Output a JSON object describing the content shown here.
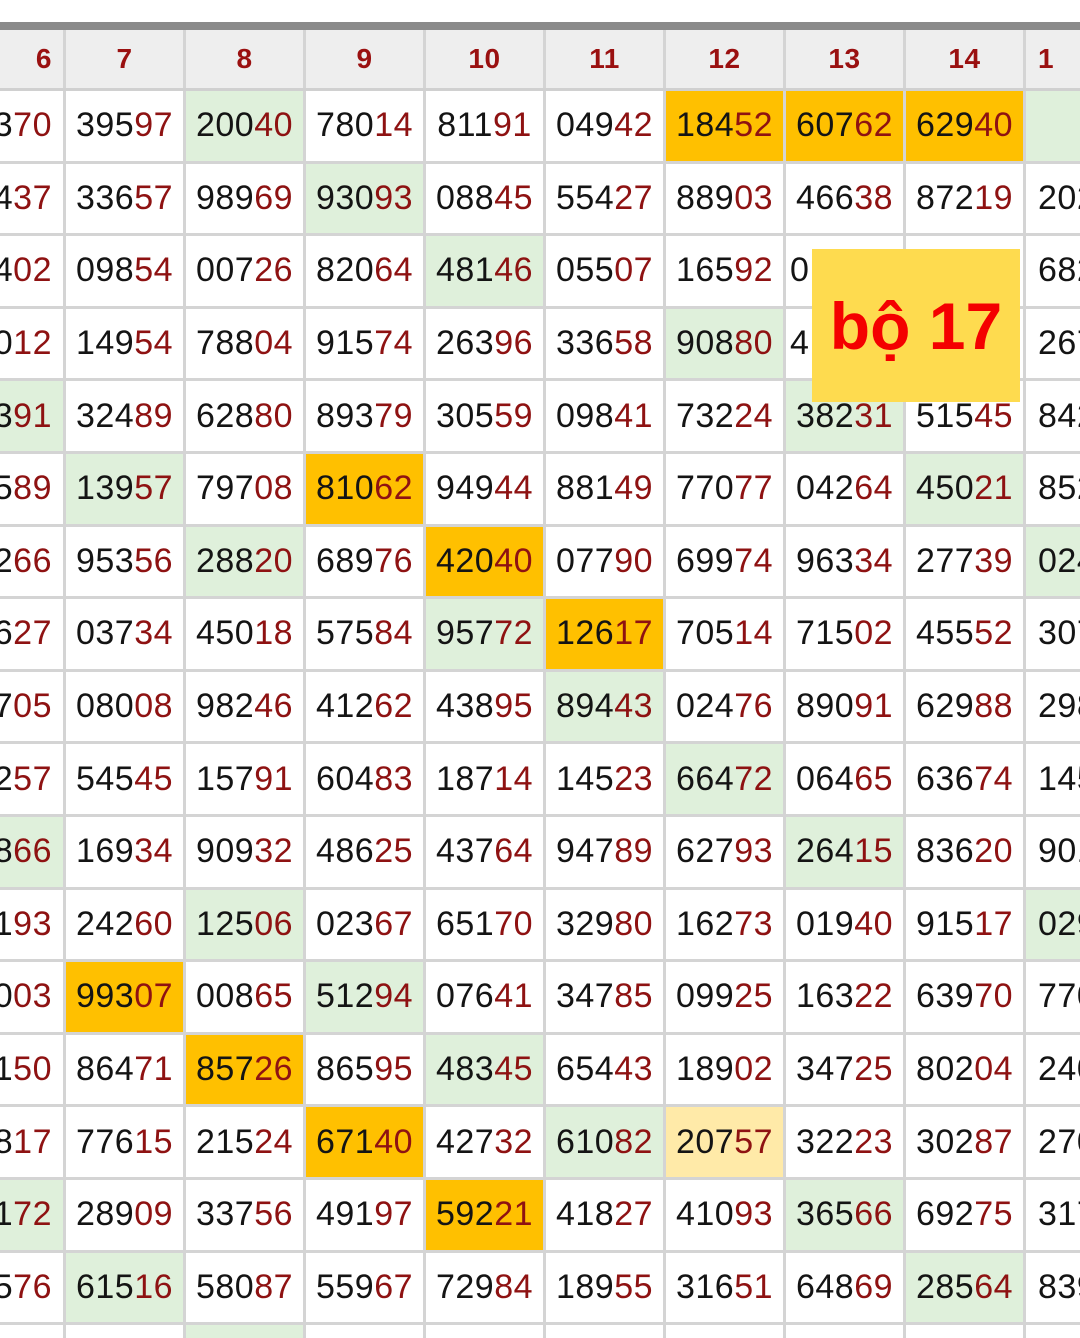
{
  "header": [
    "6",
    "7",
    "8",
    "9",
    "10",
    "11",
    "12",
    "13",
    "14",
    "1"
  ],
  "rows": [
    {
      "cells": [
        "370",
        "39597",
        "20040",
        "78014",
        "81191",
        "04942",
        "18452",
        "60762",
        "62940",
        ""
      ],
      "hl": [
        "",
        "",
        "g",
        "",
        "",
        "",
        "o",
        "o",
        "o",
        "g"
      ]
    },
    {
      "cells": [
        "437",
        "33657",
        "98969",
        "93093",
        "08845",
        "55427",
        "88903",
        "46638",
        "87219",
        "202"
      ],
      "hl": [
        "",
        "",
        "",
        "g",
        "",
        "",
        "",
        "",
        "",
        ""
      ]
    },
    {
      "cells": [
        "402",
        "09854",
        "00726",
        "82064",
        "48146",
        "05507",
        "16592",
        "0",
        "",
        "682"
      ],
      "hl": [
        "",
        "",
        "",
        "",
        "g",
        "",
        "",
        "",
        "",
        ""
      ]
    },
    {
      "cells": [
        "012",
        "14954",
        "78804",
        "91574",
        "26396",
        "33658",
        "90880",
        "4",
        "",
        "267"
      ],
      "hl": [
        "",
        "",
        "",
        "",
        "",
        "",
        "g",
        "",
        "",
        ""
      ]
    },
    {
      "cells": [
        "391",
        "32489",
        "62880",
        "89379",
        "30559",
        "09841",
        "73224",
        "38231",
        "51545",
        "842"
      ],
      "hl": [
        "g",
        "",
        "",
        "",
        "",
        "",
        "",
        "g",
        "",
        ""
      ]
    },
    {
      "cells": [
        "589",
        "13957",
        "79708",
        "81062",
        "94944",
        "88149",
        "77077",
        "04264",
        "45021",
        "852"
      ],
      "hl": [
        "",
        "g",
        "",
        "o",
        "",
        "",
        "",
        "",
        "g",
        ""
      ]
    },
    {
      "cells": [
        "266",
        "95356",
        "28820",
        "68976",
        "42040",
        "07790",
        "69974",
        "96334",
        "27739",
        "024"
      ],
      "hl": [
        "",
        "",
        "g",
        "",
        "o",
        "",
        "",
        "",
        "",
        "g"
      ]
    },
    {
      "cells": [
        "627",
        "03734",
        "45018",
        "57584",
        "95772",
        "12617",
        "70514",
        "71502",
        "45552",
        "307"
      ],
      "hl": [
        "",
        "",
        "",
        "",
        "g",
        "o",
        "",
        "",
        "",
        ""
      ]
    },
    {
      "cells": [
        "705",
        "08008",
        "98246",
        "41262",
        "43895",
        "89443",
        "02476",
        "89091",
        "62988",
        "298"
      ],
      "hl": [
        "",
        "",
        "",
        "",
        "",
        "g",
        "",
        "",
        "",
        ""
      ]
    },
    {
      "cells": [
        "257",
        "54545",
        "15791",
        "60483",
        "18714",
        "14523",
        "66472",
        "06465",
        "63674",
        "145"
      ],
      "hl": [
        "",
        "",
        "",
        "",
        "",
        "",
        "g",
        "",
        "",
        ""
      ]
    },
    {
      "cells": [
        "866",
        "16934",
        "90932",
        "48625",
        "43764",
        "94789",
        "62793",
        "26415",
        "83620",
        "901"
      ],
      "hl": [
        "g",
        "",
        "",
        "",
        "",
        "",
        "",
        "g",
        "",
        ""
      ]
    },
    {
      "cells": [
        "193",
        "24260",
        "12506",
        "02367",
        "65170",
        "32980",
        "16273",
        "01940",
        "91517",
        "029"
      ],
      "hl": [
        "",
        "",
        "g",
        "",
        "",
        "",
        "",
        "",
        "",
        "g"
      ]
    },
    {
      "cells": [
        "003",
        "99307",
        "00865",
        "51294",
        "07641",
        "34785",
        "09925",
        "16322",
        "63970",
        "770"
      ],
      "hl": [
        "",
        "o",
        "",
        "g",
        "",
        "",
        "",
        "",
        "",
        ""
      ]
    },
    {
      "cells": [
        "150",
        "86471",
        "85726",
        "86595",
        "48345",
        "65443",
        "18902",
        "34725",
        "80204",
        "240"
      ],
      "hl": [
        "",
        "",
        "o",
        "",
        "g",
        "",
        "",
        "",
        "",
        ""
      ]
    },
    {
      "cells": [
        "817",
        "77615",
        "21524",
        "67140",
        "42732",
        "61082",
        "20757",
        "32223",
        "30287",
        "270"
      ],
      "hl": [
        "",
        "",
        "",
        "o",
        "",
        "g",
        "y",
        "",
        "",
        ""
      ]
    },
    {
      "cells": [
        "172",
        "28909",
        "33756",
        "49197",
        "59221",
        "41827",
        "41093",
        "36566",
        "69275",
        "317"
      ],
      "hl": [
        "g",
        "",
        "",
        "",
        "o",
        "",
        "",
        "g",
        "",
        ""
      ]
    },
    {
      "cells": [
        "576",
        "61516",
        "58087",
        "55967",
        "72984",
        "18955",
        "31651",
        "64869",
        "28564",
        "839"
      ],
      "hl": [
        "",
        "g",
        "",
        "",
        "",
        "",
        "",
        "",
        "g",
        ""
      ]
    },
    {
      "cells": [
        "",
        "",
        "",
        "",
        "",
        "",
        "",
        "",
        "",
        ""
      ],
      "hl": [
        "",
        "",
        "g",
        "",
        "",
        "",
        "",
        "",
        "",
        ""
      ]
    }
  ],
  "overlay": {
    "label": "bộ 17"
  },
  "colors": {
    "green": "#dff0db",
    "orange": "#ffc000",
    "light_yellow": "#ffeaa8",
    "header_text": "#9a1010",
    "digit_tail": "#8e1212",
    "overlay_bg": "#fedb4f",
    "overlay_text": "#f40000"
  }
}
